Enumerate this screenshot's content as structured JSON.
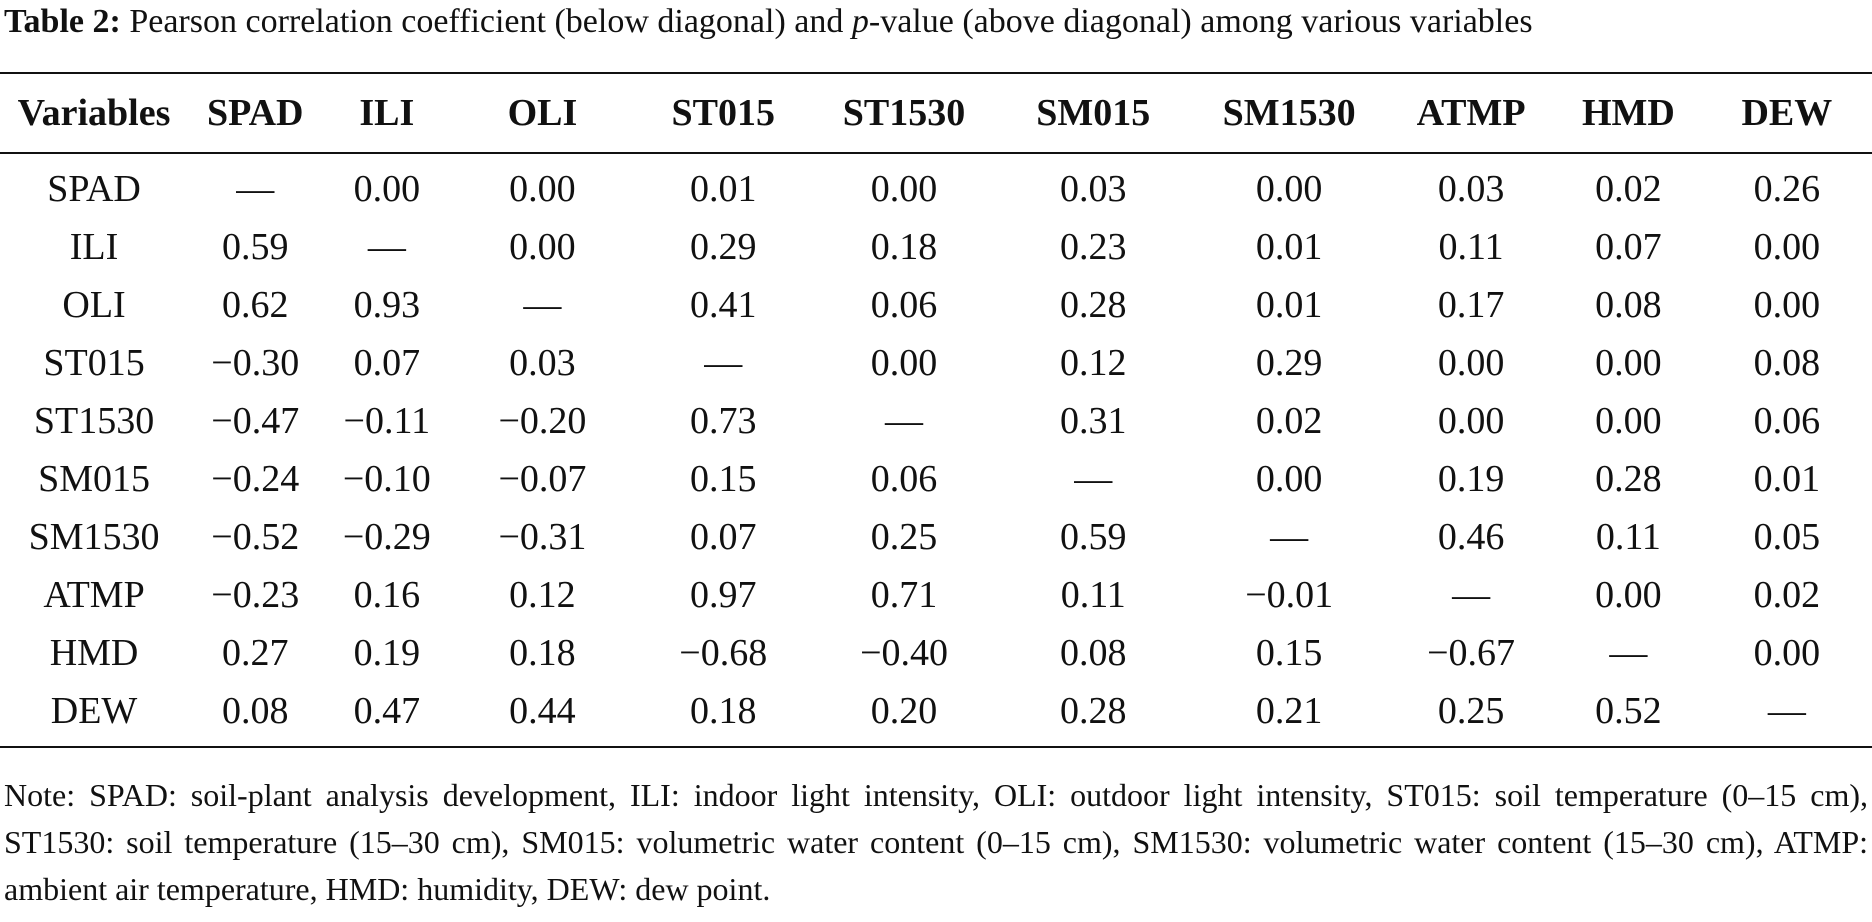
{
  "caption": {
    "label": "Table 2:",
    "text_before": " Pearson correlation coefficient (below diagonal) and ",
    "p_var": "p",
    "text_after": "-value (above diagonal) among various variables"
  },
  "table": {
    "headers": [
      "Variables",
      "SPAD",
      "ILI",
      "OLI",
      "ST015",
      "ST1530",
      "SM015",
      "SM1530",
      "ATMP",
      "HMD",
      "DEW"
    ],
    "rows": [
      [
        "SPAD",
        "—",
        "0.00",
        "0.00",
        "0.01",
        "0.00",
        "0.03",
        "0.00",
        "0.03",
        "0.02",
        "0.26"
      ],
      [
        "ILI",
        "0.59",
        "—",
        "0.00",
        "0.29",
        "0.18",
        "0.23",
        "0.01",
        "0.11",
        "0.07",
        "0.00"
      ],
      [
        "OLI",
        "0.62",
        "0.93",
        "—",
        "0.41",
        "0.06",
        "0.28",
        "0.01",
        "0.17",
        "0.08",
        "0.00"
      ],
      [
        "ST015",
        "−0.30",
        "0.07",
        "0.03",
        "—",
        "0.00",
        "0.12",
        "0.29",
        "0.00",
        "0.00",
        "0.08"
      ],
      [
        "ST1530",
        "−0.47",
        "−0.11",
        "−0.20",
        "0.73",
        "—",
        "0.31",
        "0.02",
        "0.00",
        "0.00",
        "0.06"
      ],
      [
        "SM015",
        "−0.24",
        "−0.10",
        "−0.07",
        "0.15",
        "0.06",
        "—",
        "0.00",
        "0.19",
        "0.28",
        "0.01"
      ],
      [
        "SM1530",
        "−0.52",
        "−0.29",
        "−0.31",
        "0.07",
        "0.25",
        "0.59",
        "—",
        "0.46",
        "0.11",
        "0.05"
      ],
      [
        "ATMP",
        "−0.23",
        "0.16",
        "0.12",
        "0.97",
        "0.71",
        "0.11",
        "−0.01",
        "—",
        "0.00",
        "0.02"
      ],
      [
        "HMD",
        "0.27",
        "0.19",
        "0.18",
        "−0.68",
        "−0.40",
        "0.08",
        "0.15",
        "−0.67",
        "—",
        "0.00"
      ],
      [
        "DEW",
        "0.08",
        "0.47",
        "0.44",
        "0.18",
        "0.20",
        "0.28",
        "0.21",
        "0.25",
        "0.52",
        "—"
      ]
    ]
  },
  "note": "Note: SPAD: soil-plant analysis development, ILI: indoor light intensity, OLI: outdoor light intensity, ST015: soil temperature (0–15 cm), ST1530: soil temperature (15–30 cm), SM015: volumetric water content (0–15 cm), SM1530: volumetric water content (15–30 cm), ATMP: ambient air temperature, HMD: humidity, DEW: dew point."
}
